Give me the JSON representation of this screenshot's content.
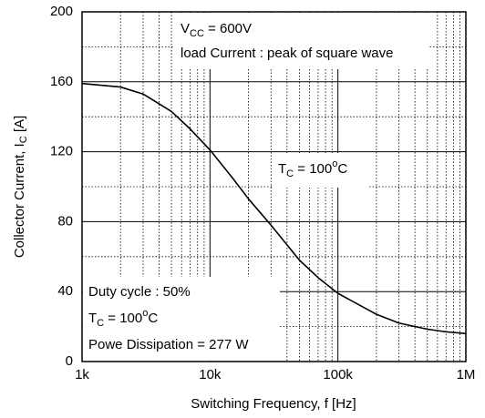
{
  "chart_data": {
    "type": "line",
    "x_label": [
      "Switching Frequency, f [Hz]"
    ],
    "y_label": [
      "Collector Current, I",
      "C",
      " [A]"
    ],
    "x": [
      1000,
      2000,
      3000,
      5000,
      7000,
      10000,
      15000,
      20000,
      30000,
      50000,
      70000,
      100000,
      200000,
      300000,
      500000,
      700000,
      1000000
    ],
    "values": [
      159,
      157,
      153,
      143,
      133,
      121,
      105,
      93,
      78,
      58,
      48,
      39,
      27,
      22,
      18.5,
      17,
      16
    ],
    "color": "#000000",
    "xscale": "log",
    "xlim": [
      1000,
      1000000
    ],
    "xticks": [
      {
        "value": 1000,
        "label": "1k"
      },
      {
        "value": 10000,
        "label": "10k"
      },
      {
        "value": 100000,
        "label": "100k"
      },
      {
        "value": 1000000,
        "label": "1M"
      }
    ],
    "ylim": [
      0,
      200
    ],
    "yticks": [
      0,
      40,
      80,
      120,
      160,
      200
    ],
    "yminor": [
      20,
      60,
      100,
      140,
      180
    ],
    "grid": true,
    "annotations": [
      [
        "V",
        "CC",
        " = 600V"
      ],
      [
        "load Current : peak of square wave"
      ],
      [
        "T",
        "C",
        " = 100",
        "o",
        "C"
      ],
      [
        "Duty cycle : 50%"
      ],
      [
        "T",
        "C",
        " = 100",
        "o",
        "C"
      ],
      [
        "Powe Dissipation = 277 W"
      ]
    ]
  }
}
